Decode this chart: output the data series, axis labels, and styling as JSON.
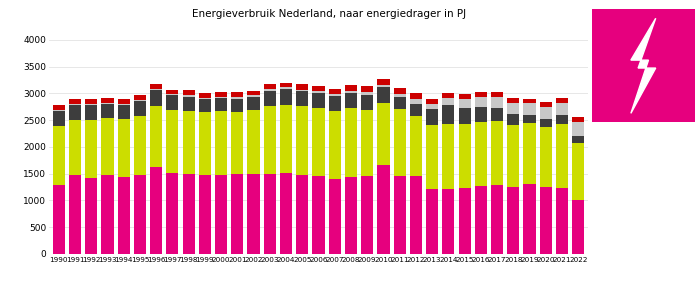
{
  "title": "Energieverbruik Nederland, naar energiedrager in PJ",
  "years": [
    1990,
    1991,
    1992,
    1993,
    1994,
    1995,
    1996,
    1997,
    1998,
    1999,
    2000,
    2001,
    2002,
    2003,
    2004,
    2005,
    2006,
    2007,
    2008,
    2009,
    2010,
    2011,
    2012,
    2013,
    2014,
    2015,
    2016,
    2017,
    2018,
    2019,
    2020,
    2021,
    2022
  ],
  "gas": [
    1290,
    1470,
    1420,
    1470,
    1430,
    1470,
    1620,
    1510,
    1490,
    1470,
    1480,
    1490,
    1490,
    1490,
    1510,
    1480,
    1460,
    1400,
    1440,
    1460,
    1670,
    1450,
    1450,
    1220,
    1210,
    1240,
    1270,
    1280,
    1260,
    1310,
    1260,
    1240,
    1000
  ],
  "olie": [
    1100,
    1040,
    1090,
    1060,
    1090,
    1100,
    1140,
    1180,
    1180,
    1180,
    1190,
    1170,
    1190,
    1280,
    1280,
    1280,
    1260,
    1270,
    1280,
    1230,
    1150,
    1260,
    1130,
    1190,
    1210,
    1190,
    1190,
    1200,
    1150,
    1130,
    1110,
    1180,
    1070
  ],
  "kolen": [
    280,
    270,
    280,
    270,
    270,
    280,
    310,
    270,
    270,
    240,
    240,
    240,
    250,
    280,
    290,
    280,
    290,
    280,
    280,
    280,
    290,
    220,
    230,
    290,
    370,
    300,
    290,
    250,
    200,
    160,
    150,
    180,
    130
  ],
  "hernieuwbaar": [
    20,
    20,
    20,
    20,
    20,
    20,
    20,
    20,
    20,
    30,
    30,
    30,
    30,
    30,
    30,
    30,
    30,
    30,
    40,
    50,
    50,
    60,
    80,
    100,
    130,
    160,
    180,
    200,
    210,
    220,
    230,
    220,
    260
  ],
  "overig": [
    100,
    95,
    80,
    90,
    90,
    90,
    90,
    90,
    100,
    90,
    80,
    90,
    90,
    90,
    90,
    100,
    100,
    110,
    110,
    110,
    105,
    110,
    110,
    100,
    90,
    90,
    90,
    90,
    90,
    80,
    90,
    90,
    90
  ],
  "colors": {
    "gas": "#e6007e",
    "olie": "#ccdd00",
    "kolen": "#3d3d3d",
    "hernieuwbaar": "#c8c8c8",
    "overig": "#cc0000"
  },
  "ylim": [
    0,
    4000
  ],
  "yticks": [
    0,
    500,
    1000,
    1500,
    2000,
    2500,
    3000,
    3500,
    4000
  ],
  "logo_color": "#e6007e",
  "background_color": "#ffffff",
  "figsize": [
    7.0,
    3.06
  ],
  "dpi": 100
}
